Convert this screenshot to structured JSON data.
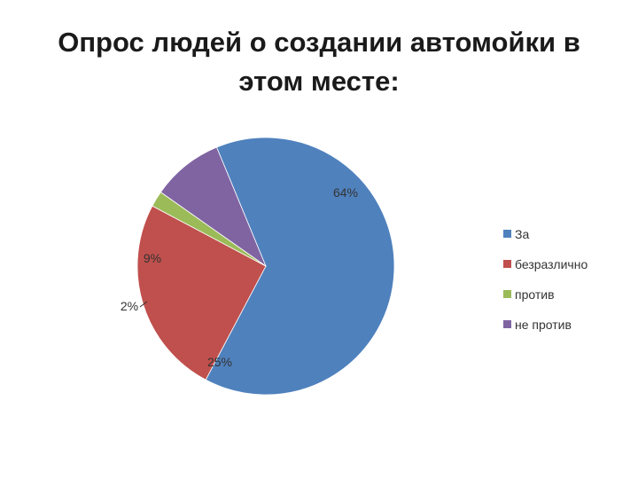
{
  "title_line1": "Опрос людей о создании автомойки в",
  "title_line2": "этом месте:",
  "chart_data": {
    "type": "pie",
    "title": "Опрос людей о создании автомойки в этом месте:",
    "legend_position": "right",
    "slices": [
      {
        "label": "За",
        "value": 64,
        "display": "64%",
        "color": "#4F81BD"
      },
      {
        "label": "безразлично",
        "value": 25,
        "display": "25%",
        "color": "#C0504D"
      },
      {
        "label": "против",
        "value": 2,
        "display": "2%",
        "color": "#9BBB59"
      },
      {
        "label": "не против",
        "value": 9,
        "display": "9%",
        "color": "#8064A2"
      }
    ]
  }
}
